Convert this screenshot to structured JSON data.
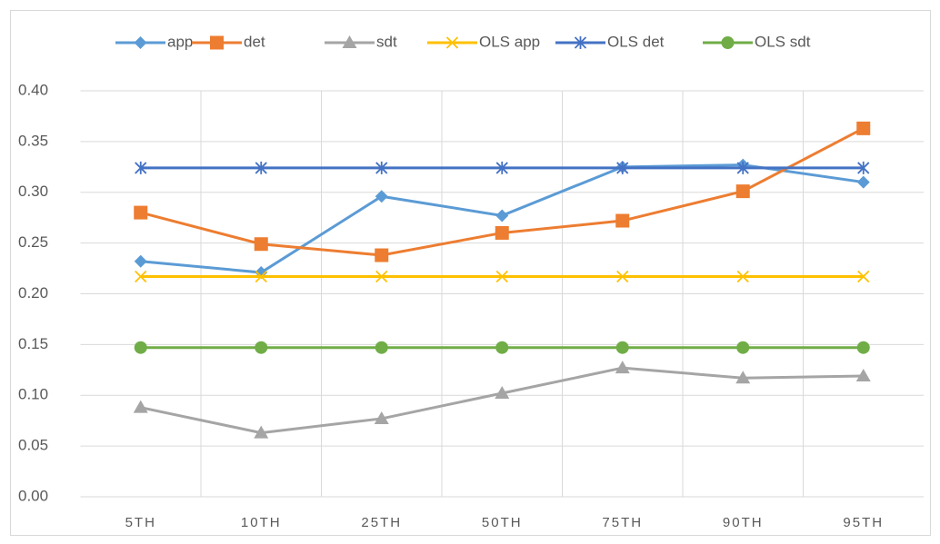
{
  "chart_data": {
    "type": "line",
    "categories": [
      "5TH",
      "10TH",
      "25TH",
      "50TH",
      "75TH",
      "90TH",
      "95TH"
    ],
    "series": [
      {
        "name": "app",
        "color": "#5b9bd5",
        "marker": "diamond",
        "values": [
          0.232,
          0.221,
          0.296,
          0.277,
          0.325,
          0.327,
          0.31
        ]
      },
      {
        "name": "det",
        "color": "#ed7d31",
        "marker": "square",
        "values": [
          0.28,
          0.249,
          0.238,
          0.26,
          0.272,
          0.301,
          0.363
        ]
      },
      {
        "name": "sdt",
        "color": "#a5a5a5",
        "marker": "triangle",
        "values": [
          0.088,
          0.063,
          0.077,
          0.102,
          0.127,
          0.117,
          0.119
        ]
      },
      {
        "name": "OLS app",
        "color": "#ffc000",
        "marker": "x",
        "values": [
          0.217,
          0.217,
          0.217,
          0.217,
          0.217,
          0.217,
          0.217
        ]
      },
      {
        "name": "OLS det",
        "color": "#4472c4",
        "marker": "asterisk",
        "values": [
          0.324,
          0.324,
          0.324,
          0.324,
          0.324,
          0.324,
          0.324
        ]
      },
      {
        "name": "OLS sdt",
        "color": "#70ad47",
        "marker": "circle",
        "values": [
          0.147,
          0.147,
          0.147,
          0.147,
          0.147,
          0.147,
          0.147
        ]
      }
    ],
    "ylim": [
      0,
      0.4
    ],
    "yticks": [
      {
        "value": 0,
        "label": "0.00"
      },
      {
        "value": 0.05,
        "label": "0.05"
      },
      {
        "value": 0.1,
        "label": "0.10"
      },
      {
        "value": 0.15,
        "label": "0.15"
      },
      {
        "value": 0.2,
        "label": "0.20"
      },
      {
        "value": 0.25,
        "label": "0.25"
      },
      {
        "value": 0.3,
        "label": "0.30"
      },
      {
        "value": 0.35,
        "label": "0.35"
      },
      {
        "value": 0.4,
        "label": "0.40"
      }
    ],
    "grid": true,
    "legend": "top"
  }
}
